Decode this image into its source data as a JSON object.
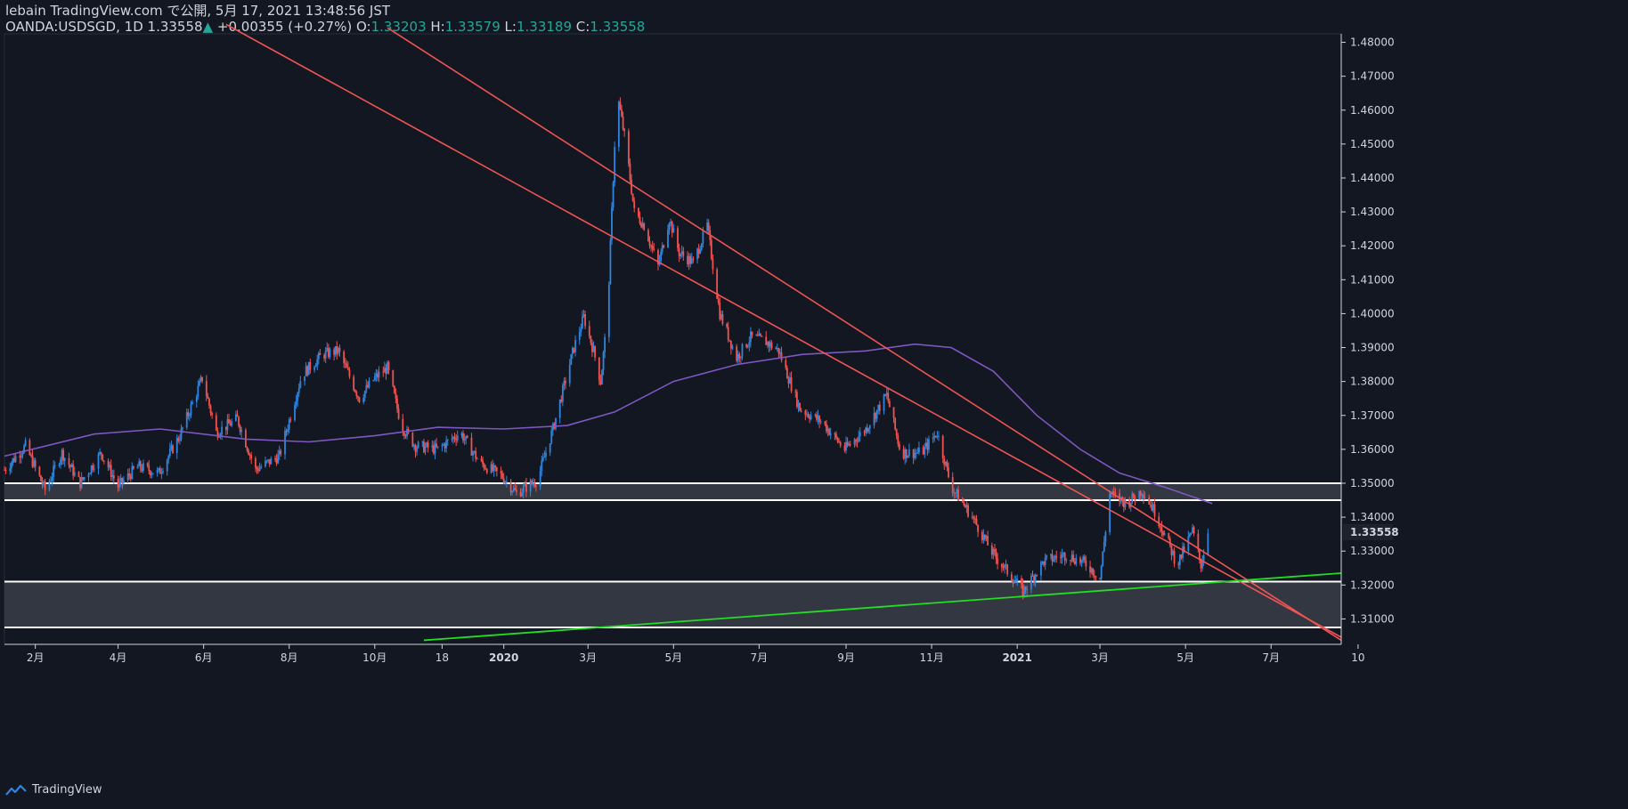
{
  "header": {
    "line1": "lebain TradingView.com で公開, 5月 17, 2021 13:48:56 JST",
    "symbol": "OANDA:USDSGD, 1D",
    "last": "1.33558",
    "change": "+0.00355 (+0.27%)",
    "o_label": "O:",
    "o_value": "1.33203",
    "h_label": "H:",
    "h_value": "1.33579",
    "l_label": "L:",
    "l_value": "1.33189",
    "c_label": "C:",
    "c_value": "1.33558"
  },
  "footer": {
    "brand": "TradingView"
  },
  "colors": {
    "background": "#131722",
    "up": "#2e86de",
    "down": "#ef5350",
    "ma": "#7e57c2",
    "channel": "#f05454",
    "trend": "#22dd22",
    "zone": "#3a3d47",
    "zone_line": "#ffffff"
  },
  "chart_data": {
    "type": "candlestick",
    "ylim": [
      1.3025,
      1.4825
    ],
    "ytick_values": [
      1.31,
      1.32,
      1.33,
      1.34,
      1.35,
      1.36,
      1.37,
      1.38,
      1.39,
      1.4,
      1.41,
      1.42,
      1.43,
      1.44,
      1.45,
      1.46,
      1.47,
      1.48
    ],
    "ytick_labels": [
      "1.31000",
      "1.32000",
      "1.33000",
      "1.34000",
      "1.35000",
      "1.36000",
      "1.37000",
      "1.38000",
      "1.39000",
      "1.40000",
      "1.41000",
      "1.42000",
      "1.43000",
      "1.44000",
      "1.45000",
      "1.46000",
      "1.47000",
      "1.48000"
    ],
    "xtick_dates": [
      "2019-02-01",
      "2019-04-01",
      "2019-06-01",
      "2019-08-01",
      "2019-10-01",
      "2019-11-18",
      "2020-01-01",
      "2020-03-01",
      "2020-05-01",
      "2020-07-01",
      "2020-09-01",
      "2020-11-01",
      "2021-01-01",
      "2021-03-01",
      "2021-05-01",
      "2021-07-01",
      "2021-09-01"
    ],
    "xtick_labels": [
      "2月",
      "4月",
      "6月",
      "8月",
      "10月",
      "18",
      "2020",
      "3月",
      "5月",
      "7月",
      "9月",
      "11月",
      "2021",
      "3月",
      "5月",
      "7月",
      "10"
    ],
    "xtick_bold": [
      "2020",
      "2021"
    ],
    "xlim": [
      "2019-01-10",
      "2021-08-20"
    ],
    "last_price": 1.33558,
    "last_price_label": "1.33558",
    "price_path": [
      [
        "2019-01-10",
        1.354
      ],
      [
        "2019-01-25",
        1.361
      ],
      [
        "2019-02-08",
        1.348
      ],
      [
        "2019-02-20",
        1.359
      ],
      [
        "2019-03-05",
        1.35
      ],
      [
        "2019-03-20",
        1.359
      ],
      [
        "2019-04-01",
        1.349
      ],
      [
        "2019-04-15",
        1.355
      ],
      [
        "2019-04-30",
        1.353
      ],
      [
        "2019-05-15",
        1.364
      ],
      [
        "2019-05-31",
        1.381
      ],
      [
        "2019-06-10",
        1.365
      ],
      [
        "2019-06-25",
        1.369
      ],
      [
        "2019-07-08",
        1.354
      ],
      [
        "2019-07-25",
        1.358
      ],
      [
        "2019-08-10",
        1.382
      ],
      [
        "2019-08-25",
        1.388
      ],
      [
        "2019-09-05",
        1.389
      ],
      [
        "2019-09-20",
        1.375
      ],
      [
        "2019-10-01",
        1.381
      ],
      [
        "2019-10-10",
        1.384
      ],
      [
        "2019-10-20",
        1.367
      ],
      [
        "2019-10-30",
        1.361
      ],
      [
        "2019-11-15",
        1.36
      ],
      [
        "2019-12-01",
        1.365
      ],
      [
        "2019-12-15",
        1.356
      ],
      [
        "2019-12-31",
        1.352
      ],
      [
        "2020-01-10",
        1.347
      ],
      [
        "2020-01-25",
        1.351
      ],
      [
        "2020-02-05",
        1.366
      ],
      [
        "2020-02-20",
        1.39
      ],
      [
        "2020-02-27",
        1.399
      ],
      [
        "2020-03-05",
        1.389
      ],
      [
        "2020-03-10",
        1.38
      ],
      [
        "2020-03-15",
        1.4
      ],
      [
        "2020-03-20",
        1.45
      ],
      [
        "2020-03-23",
        1.462
      ],
      [
        "2020-03-28",
        1.45
      ],
      [
        "2020-04-03",
        1.43
      ],
      [
        "2020-04-10",
        1.426
      ],
      [
        "2020-04-20",
        1.414
      ],
      [
        "2020-04-28",
        1.428
      ],
      [
        "2020-05-05",
        1.418
      ],
      [
        "2020-05-15",
        1.415
      ],
      [
        "2020-05-25",
        1.426
      ],
      [
        "2020-06-03",
        1.4
      ],
      [
        "2020-06-15",
        1.387
      ],
      [
        "2020-06-25",
        1.393
      ],
      [
        "2020-07-05",
        1.392
      ],
      [
        "2020-07-15",
        1.389
      ],
      [
        "2020-07-30",
        1.372
      ],
      [
        "2020-08-15",
        1.368
      ],
      [
        "2020-08-31",
        1.36
      ],
      [
        "2020-09-15",
        1.366
      ],
      [
        "2020-09-30",
        1.376
      ],
      [
        "2020-10-10",
        1.359
      ],
      [
        "2020-10-25",
        1.359
      ],
      [
        "2020-11-05",
        1.365
      ],
      [
        "2020-11-15",
        1.349
      ],
      [
        "2020-11-30",
        1.34
      ],
      [
        "2020-12-15",
        1.329
      ],
      [
        "2020-12-31",
        1.321
      ],
      [
        "2021-01-05",
        1.318
      ],
      [
        "2021-01-20",
        1.327
      ],
      [
        "2021-02-05",
        1.329
      ],
      [
        "2021-02-20",
        1.326
      ],
      [
        "2021-03-01",
        1.322
      ],
      [
        "2021-03-08",
        1.347
      ],
      [
        "2021-03-20",
        1.344
      ],
      [
        "2021-03-31",
        1.348
      ],
      [
        "2021-04-10",
        1.341
      ],
      [
        "2021-04-25",
        1.326
      ],
      [
        "2021-05-06",
        1.336
      ],
      [
        "2021-05-12",
        1.326
      ],
      [
        "2021-05-17",
        1.33558
      ]
    ],
    "ma_path": [
      [
        "2019-01-10",
        1.358
      ],
      [
        "2019-03-15",
        1.3645
      ],
      [
        "2019-05-01",
        1.366
      ],
      [
        "2019-07-01",
        1.363
      ],
      [
        "2019-08-15",
        1.3622
      ],
      [
        "2019-10-01",
        1.364
      ],
      [
        "2019-11-15",
        1.3665
      ],
      [
        "2020-01-01",
        1.366
      ],
      [
        "2020-02-15",
        1.367
      ],
      [
        "2020-03-20",
        1.371
      ],
      [
        "2020-05-01",
        1.38
      ],
      [
        "2020-06-15",
        1.385
      ],
      [
        "2020-08-01",
        1.388
      ],
      [
        "2020-09-15",
        1.389
      ],
      [
        "2020-10-20",
        1.391
      ],
      [
        "2020-11-15",
        1.39
      ],
      [
        "2020-12-15",
        1.383
      ],
      [
        "2021-01-15",
        1.37
      ],
      [
        "2021-02-15",
        1.36
      ],
      [
        "2021-03-15",
        1.353
      ],
      [
        "2021-04-15",
        1.349
      ],
      [
        "2021-05-20",
        1.344
      ]
    ],
    "channel_lines": [
      {
        "from": [
          "2019-06-17",
          1.4853
        ],
        "to": [
          "2021-08-20",
          1.3046
        ]
      },
      {
        "from": [
          "2019-10-10",
          1.4843
        ],
        "to": [
          "2021-08-20",
          1.3037
        ]
      }
    ],
    "channel_lines_note": "",
    "trend_line": {
      "from": [
        "2019-11-05",
        1.3037
      ],
      "to": [
        "2021-08-20",
        1.3235
      ]
    },
    "zones": [
      {
        "top": 1.35,
        "bottom": 1.345
      },
      {
        "top": 1.321,
        "bottom": 1.3075
      }
    ]
  }
}
